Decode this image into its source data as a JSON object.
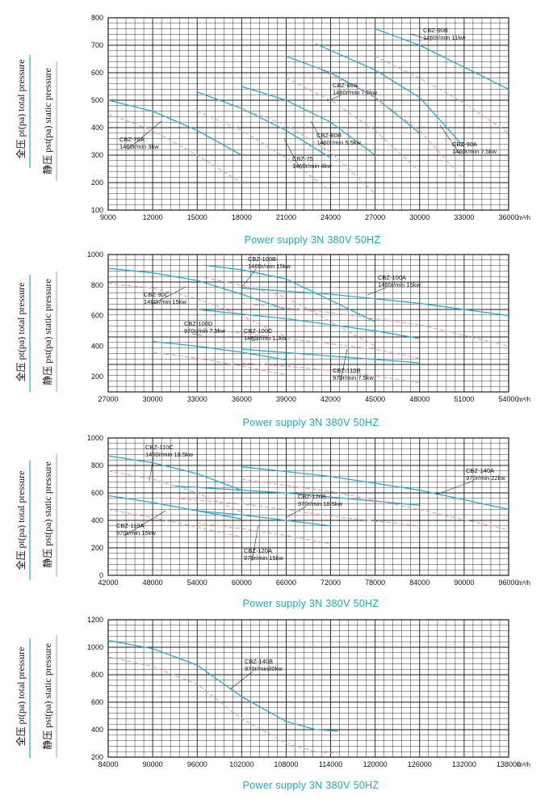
{
  "legend": {
    "total_pressure": "全压 pt(pa) total pressure",
    "static_pressure": "静压 pst(pa) static pressure"
  },
  "colors": {
    "total": "#2aa9cf",
    "static": "#e89aa8",
    "grid": "#1a1a1a",
    "supply_text": "#1aa8c8"
  },
  "chart_data": [
    {
      "type": "line",
      "x_unit": "m³/h",
      "footer": "Power supply  3N 380V  50HZ",
      "xlim": [
        9000,
        36000
      ],
      "ylim": [
        100,
        800
      ],
      "x_ticks": [
        9000,
        12000,
        15000,
        18000,
        21000,
        24000,
        27000,
        30000,
        33000,
        36000
      ],
      "y_ticks": [
        100,
        200,
        300,
        400,
        500,
        600,
        700,
        800
      ],
      "grid": true,
      "series": [
        {
          "name": "CBZ-70A",
          "label": "1460r/min 3kw",
          "kind": "total",
          "points": [
            [
              9000,
              500
            ],
            [
              12000,
              460
            ],
            [
              15000,
              390
            ],
            [
              18000,
              300
            ]
          ]
        },
        {
          "name": "CBZ-70A",
          "kind": "static",
          "points": [
            [
              9000,
              450
            ],
            [
              12000,
              390
            ],
            [
              15000,
              300
            ],
            [
              18000,
              200
            ]
          ]
        },
        {
          "name": "CBZ-75",
          "label": "1460r/min 4kw",
          "kind": "total",
          "points": [
            [
              15000,
              530
            ],
            [
              18000,
              470
            ],
            [
              21000,
              390
            ],
            [
              24000,
              290
            ]
          ]
        },
        {
          "name": "CBZ-75",
          "kind": "static",
          "points": [
            [
              15000,
              460
            ],
            [
              18000,
              390
            ],
            [
              21000,
              290
            ],
            [
              24000,
              170
            ]
          ]
        },
        {
          "name": "CBZ-80B",
          "label": "1460r/min 5.5kw",
          "kind": "total",
          "points": [
            [
              18000,
              550
            ],
            [
              21000,
              500
            ],
            [
              24000,
              420
            ],
            [
              27000,
              300
            ]
          ]
        },
        {
          "name": "CBZ-80B",
          "kind": "static",
          "points": [
            [
              18000,
              470
            ],
            [
              21000,
              410
            ],
            [
              24000,
              310
            ],
            [
              27000,
              160
            ]
          ]
        },
        {
          "name": "CBZ-80A",
          "label": "1460r/min 7.5kw",
          "kind": "total",
          "points": [
            [
              21000,
              660
            ],
            [
              24000,
              600
            ],
            [
              27000,
              510
            ],
            [
              30000,
              380
            ]
          ]
        },
        {
          "name": "CBZ-80A",
          "kind": "static",
          "points": [
            [
              21000,
              580
            ],
            [
              24000,
              500
            ],
            [
              27000,
              390
            ],
            [
              30000,
              240
            ]
          ]
        },
        {
          "name": "CBZ-90A",
          "label": "1460r/min 7.5kw",
          "kind": "total",
          "points": [
            [
              23000,
              705
            ],
            [
              27000,
              610
            ],
            [
              30000,
              510
            ],
            [
              33000,
              330
            ]
          ]
        },
        {
          "name": "CBZ-90A",
          "kind": "static",
          "points": [
            [
              23000,
              620
            ],
            [
              27000,
              510
            ],
            [
              30000,
              390
            ],
            [
              33000,
              210
            ]
          ]
        },
        {
          "name": "CBZ-90B",
          "label": "1460r/min 11kw",
          "kind": "total",
          "points": [
            [
              27000,
              760
            ],
            [
              30000,
              700
            ],
            [
              33000,
              620
            ],
            [
              36000,
              540
            ]
          ]
        },
        {
          "name": "CBZ-90B",
          "kind": "static",
          "points": [
            [
              27000,
              660
            ],
            [
              30000,
              580
            ],
            [
              33000,
              490
            ],
            [
              36000,
              380
            ]
          ]
        }
      ]
    },
    {
      "type": "line",
      "x_unit": "m³/h",
      "footer": "Power supply  3N 380V  50HZ",
      "xlim": [
        27000,
        54000
      ],
      "ylim": [
        100,
        1000
      ],
      "x_ticks": [
        27000,
        30000,
        33000,
        36000,
        39000,
        42000,
        45000,
        48000,
        51000,
        54000
      ],
      "y_ticks": [
        200,
        400,
        600,
        800,
        1000
      ],
      "grid": true,
      "series": [
        {
          "name": "CBZ-90C",
          "label": "1460r/min 15kw",
          "kind": "total",
          "points": [
            [
              27000,
              910
            ],
            [
              30000,
              880
            ],
            [
              33000,
              830
            ],
            [
              36000,
              740
            ],
            [
              39000,
              640
            ]
          ]
        },
        {
          "name": "CBZ-90C",
          "kind": "static",
          "points": [
            [
              27000,
              810
            ],
            [
              30000,
              780
            ],
            [
              33000,
              710
            ],
            [
              36000,
              600
            ],
            [
              39000,
              460
            ]
          ]
        },
        {
          "name": "CBZ-100B",
          "label": "1460r/min 15kw",
          "kind": "total",
          "points": [
            [
              33500,
              930
            ],
            [
              36000,
              900
            ],
            [
              39000,
              840
            ],
            [
              42000,
              700
            ],
            [
              45000,
              560
            ]
          ]
        },
        {
          "name": "CBZ-100B",
          "kind": "static",
          "points": [
            [
              33500,
              850
            ],
            [
              36000,
              800
            ],
            [
              39000,
              720
            ],
            [
              42000,
              560
            ],
            [
              45000,
              400
            ]
          ]
        },
        {
          "name": "CBZ-100A",
          "label": "1460r/min 15kw",
          "kind": "total",
          "points": [
            [
              36000,
              780
            ],
            [
              42000,
              740
            ],
            [
              48000,
              680
            ],
            [
              54000,
              600
            ]
          ]
        },
        {
          "name": "CBZ-100A",
          "kind": "static",
          "points": [
            [
              36000,
              680
            ],
            [
              42000,
              620
            ],
            [
              48000,
              540
            ],
            [
              54000,
              400
            ]
          ]
        },
        {
          "name": "CBZ-100C",
          "label": "1460r/min 11kw",
          "kind": "total",
          "points": [
            [
              33000,
              640
            ],
            [
              39000,
              580
            ],
            [
              45000,
              500
            ],
            [
              48000,
              450
            ]
          ]
        },
        {
          "name": "CBZ-100C",
          "kind": "static",
          "points": [
            [
              33000,
              520
            ],
            [
              39000,
              450
            ],
            [
              45000,
              380
            ],
            [
              48000,
              320
            ]
          ]
        },
        {
          "name": "CBZ-100D",
          "label": "970r/min 7.5kw",
          "kind": "total",
          "points": [
            [
              30000,
              430
            ],
            [
              33000,
              400
            ],
            [
              36000,
              360
            ],
            [
              39000,
              310
            ]
          ]
        },
        {
          "name": "CBZ-100D",
          "kind": "static",
          "points": [
            [
              30000,
              360
            ],
            [
              33000,
              320
            ],
            [
              36000,
              270
            ],
            [
              39000,
              210
            ]
          ]
        },
        {
          "name": "CBZ-110B",
          "label": "970r/min 7.5kw",
          "kind": "total",
          "points": [
            [
              36000,
              380
            ],
            [
              40000,
              350
            ],
            [
              44000,
              320
            ],
            [
              48000,
              290
            ]
          ]
        },
        {
          "name": "CBZ-110B",
          "kind": "static",
          "points": [
            [
              36000,
              290
            ],
            [
              40000,
              260
            ],
            [
              44000,
              220
            ],
            [
              48000,
              160
            ]
          ]
        }
      ]
    },
    {
      "type": "line",
      "x_unit": "m³/h",
      "footer": "Power supply  3N 380V  50HZ",
      "xlim": [
        42000,
        96000
      ],
      "ylim": [
        0,
        1000
      ],
      "x_ticks": [
        42000,
        48000,
        54000,
        60000,
        66000,
        72000,
        78000,
        84000,
        90000,
        96000
      ],
      "y_ticks": [
        0,
        200,
        400,
        600,
        800,
        1000
      ],
      "grid": true,
      "series": [
        {
          "name": "CBZ-110C",
          "label": "1460r/min 18.5kw",
          "kind": "total",
          "points": [
            [
              42000,
              870
            ],
            [
              48000,
              820
            ],
            [
              54000,
              740
            ],
            [
              60000,
              620
            ]
          ]
        },
        {
          "name": "CBZ-110C",
          "kind": "static",
          "points": [
            [
              42000,
              760
            ],
            [
              48000,
              700
            ],
            [
              54000,
              600
            ],
            [
              60000,
              460
            ]
          ]
        },
        {
          "name": "CBZ-120B",
          "label": "970r/min 18.5kw",
          "kind": "total",
          "points": [
            [
              51000,
              650
            ],
            [
              60000,
              620
            ],
            [
              66000,
              600
            ],
            [
              72000,
              570
            ],
            [
              84000,
              510
            ]
          ]
        },
        {
          "name": "CBZ-120B",
          "kind": "static",
          "points": [
            [
              51000,
              560
            ],
            [
              60000,
              520
            ],
            [
              66000,
              480
            ],
            [
              72000,
              430
            ],
            [
              84000,
              360
            ]
          ]
        },
        {
          "name": "CBZ-140A",
          "label": "970r/min 22kw",
          "kind": "total",
          "points": [
            [
              60000,
              790
            ],
            [
              72000,
              720
            ],
            [
              84000,
              620
            ],
            [
              96000,
              480
            ]
          ]
        },
        {
          "name": "CBZ-140A",
          "kind": "static",
          "points": [
            [
              60000,
              700
            ],
            [
              72000,
              610
            ],
            [
              84000,
              480
            ],
            [
              96000,
              330
            ]
          ]
        },
        {
          "name": "CBZ-110A",
          "label": "970r/min 15kw",
          "kind": "total",
          "points": [
            [
              42000,
              580
            ],
            [
              48000,
              530
            ],
            [
              54000,
              470
            ],
            [
              60000,
              410
            ]
          ]
        },
        {
          "name": "CBZ-110A",
          "kind": "static",
          "points": [
            [
              42000,
              480
            ],
            [
              48000,
              420
            ],
            [
              54000,
              350
            ],
            [
              60000,
              280
            ]
          ]
        },
        {
          "name": "CBZ-120A",
          "label": "970r/min 15kw",
          "kind": "total",
          "points": [
            [
              54000,
              470
            ],
            [
              60000,
              440
            ],
            [
              66000,
              400
            ],
            [
              72000,
              360
            ]
          ]
        },
        {
          "name": "CBZ-120A",
          "kind": "static",
          "points": [
            [
              54000,
              380
            ],
            [
              60000,
              340
            ],
            [
              66000,
              290
            ],
            [
              72000,
              230
            ]
          ]
        }
      ]
    },
    {
      "type": "line",
      "x_unit": "m³/h",
      "footer": "Power supply  3N 380V  50HZ",
      "xlim": [
        84000,
        138000
      ],
      "ylim": [
        200,
        1200
      ],
      "x_ticks": [
        84000,
        90000,
        96000,
        102000,
        108000,
        114000,
        120000,
        126000,
        132000,
        138000
      ],
      "y_ticks": [
        200,
        400,
        600,
        800,
        1000,
        1200
      ],
      "grid": true,
      "series": [
        {
          "name": "CBZ-140B",
          "label": "970r/min30kw",
          "kind": "total",
          "points": [
            [
              84000,
              1050
            ],
            [
              90000,
              990
            ],
            [
              96000,
              870
            ],
            [
              102000,
              640
            ],
            [
              108000,
              460
            ],
            [
              112000,
              400
            ],
            [
              115000,
              390
            ]
          ]
        },
        {
          "name": "CBZ-140B",
          "kind": "static",
          "points": [
            [
              84000,
              930
            ],
            [
              90000,
              860
            ],
            [
              96000,
              730
            ],
            [
              102000,
              480
            ],
            [
              108000,
              300
            ],
            [
              112000,
              240
            ],
            [
              115000,
              230
            ]
          ]
        }
      ]
    }
  ]
}
